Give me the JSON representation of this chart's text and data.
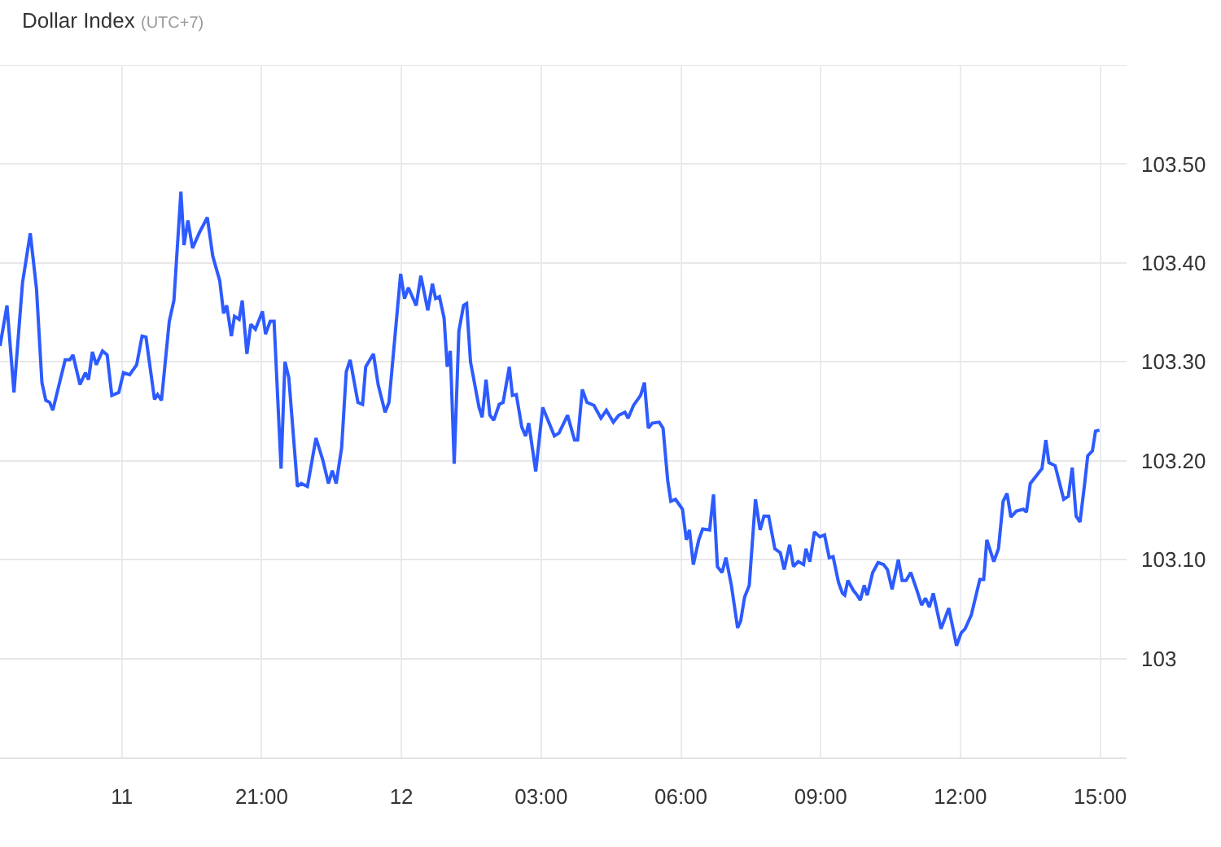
{
  "chart_data": {
    "type": "line",
    "title": "Dollar Index",
    "subtitle": "(UTC+7)",
    "x": [
      "--01-11T15:23",
      "--01-11T15:32",
      "--01-11T15:41",
      "--01-11T15:52",
      "--01-11T16:02",
      "--01-11T16:10",
      "--01-11T16:17",
      "--01-11T16:22",
      "--01-11T16:27",
      "--01-11T16:31",
      "--01-11T16:47",
      "--01-11T16:53",
      "--01-11T16:57",
      "--01-11T17:06",
      "--01-11T17:13",
      "--01-11T17:17",
      "--01-11T17:22",
      "--01-11T17:27",
      "--01-11T17:35",
      "--01-11T17:41",
      "--01-11T17:47",
      "--01-11T17:56",
      "--01-11T18:02",
      "--01-11T18:10",
      "--01-11T18:19",
      "--01-11T18:26",
      "--01-11T18:31",
      "--01-11T18:42",
      "--01-11T18:46",
      "--01-11T18:51",
      "--01-11T19:01",
      "--01-11T19:07",
      "--01-11T19:16",
      "--01-11T19:20",
      "--01-11T19:25",
      "--01-11T19:31",
      "--01-11T19:40",
      "--01-11T19:50",
      "--01-11T19:57",
      "--01-11T20:06",
      "--01-11T20:11",
      "--01-11T20:15",
      "--01-11T20:21",
      "--01-11T20:25",
      "--01-11T20:31",
      "--01-11T20:35",
      "--01-11T20:41",
      "--01-11T20:46",
      "--01-11T20:52",
      "--01-11T21:01",
      "--01-11T21:05",
      "--01-11T21:11",
      "--01-11T21:16",
      "--01-11T21:25",
      "--01-11T21:30",
      "--01-11T21:35",
      "--01-11T21:46",
      "--01-11T21:51",
      "--01-11T21:59",
      "--01-11T22:10",
      "--01-11T22:19",
      "--01-11T22:26",
      "--01-11T22:31",
      "--01-11T22:36",
      "--01-11T22:43",
      "--01-11T22:49",
      "--01-11T22:54",
      "--01-11T23:04",
      "--01-11T23:10",
      "--01-11T23:14",
      "--01-11T23:24",
      "--01-11T23:30",
      "--01-11T23:39",
      "--01-11T23:44",
      "--01-11T23:59",
      "--01-12T00:04",
      "--01-12T00:09",
      "--01-12T00:19",
      "--01-12T00:25",
      "--01-12T00:34",
      "--01-12T00:40",
      "--01-12T00:44",
      "--01-12T00:49",
      "--01-12T00:55",
      "--01-12T00:59",
      "--01-12T01:03",
      "--01-12T01:08",
      "--01-12T01:14",
      "--01-12T01:20",
      "--01-12T01:24",
      "--01-12T01:29",
      "--01-12T01:40",
      "--01-12T01:44",
      "--01-12T01:49",
      "--01-12T01:54",
      "--01-12T01:59",
      "--01-12T02:06",
      "--01-12T02:11",
      "--01-12T02:19",
      "--01-12T02:23",
      "--01-12T02:28",
      "--01-12T02:35",
      "--01-12T02:40",
      "--01-12T02:44",
      "--01-12T02:53",
      "--01-12T03:02",
      "--01-12T03:17",
      "--01-12T03:23",
      "--01-12T03:34",
      "--01-12T03:43",
      "--01-12T03:47",
      "--01-12T03:53",
      "--01-12T03:59",
      "--01-12T04:08",
      "--01-12T04:17",
      "--01-12T04:24",
      "--01-12T04:33",
      "--01-12T04:40",
      "--01-12T04:48",
      "--01-12T04:52",
      "--01-12T04:59",
      "--01-12T05:08",
      "--01-12T05:13",
      "--01-12T05:18",
      "--01-12T05:23",
      "--01-12T05:32",
      "--01-12T05:37",
      "--01-12T05:43",
      "--01-12T05:47",
      "--01-12T05:53",
      "--01-12T06:02",
      "--01-12T06:07",
      "--01-12T06:11",
      "--01-12T06:16",
      "--01-12T06:23",
      "--01-12T06:28",
      "--01-12T06:37",
      "--01-12T06:42",
      "--01-12T06:47",
      "--01-12T06:53",
      "--01-12T06:58",
      "--01-12T07:05",
      "--01-12T07:13",
      "--01-12T07:17",
      "--01-12T07:22",
      "--01-12T07:28",
      "--01-12T07:36",
      "--01-12T07:42",
      "--01-12T07:47",
      "--01-12T07:53",
      "--01-12T08:01",
      "--01-12T08:08",
      "--01-12T08:13",
      "--01-12T08:20",
      "--01-12T08:25",
      "--01-12T08:31",
      "--01-12T08:38",
      "--01-12T08:41",
      "--01-12T08:46",
      "--01-12T08:52",
      "--01-12T08:59",
      "--01-12T09:05",
      "--01-12T09:11",
      "--01-12T09:16",
      "--01-12T09:23",
      "--01-12T09:28",
      "--01-12T09:31",
      "--01-12T09:35",
      "--01-12T09:42",
      "--01-12T09:47",
      "--01-12T09:51",
      "--01-12T09:56",
      "--01-12T10:00",
      "--01-12T10:07",
      "--01-12T10:14",
      "--01-12T10:21",
      "--01-12T10:26",
      "--01-12T10:32",
      "--01-12T10:40",
      "--01-12T10:45",
      "--01-12T10:50",
      "--01-12T10:56",
      "--01-12T11:04",
      "--01-12T11:10",
      "--01-12T11:15",
      "--01-12T11:20",
      "--01-12T11:25",
      "--01-12T11:35",
      "--01-12T11:45",
      "--01-12T11:55",
      "--01-12T12:01",
      "--01-12T12:06",
      "--01-12T12:14",
      "--01-12T12:25",
      "--01-12T12:30",
      "--01-12T12:34",
      "--01-12T12:43",
      "--01-12T12:49",
      "--01-12T12:55",
      "--01-12T13:00",
      "--01-12T13:05",
      "--01-12T13:12",
      "--01-12T13:21",
      "--01-12T13:25",
      "--01-12T13:30",
      "--01-12T13:40",
      "--01-12T13:45",
      "--01-12T13:50",
      "--01-12T13:54",
      "--01-12T14:02",
      "--01-12T14:13",
      "--01-12T14:19",
      "--01-12T14:24",
      "--01-12T14:29",
      "--01-12T14:34",
      "--01-12T14:40",
      "--01-12T14:44",
      "--01-12T14:50",
      "--01-12T14:54",
      "--01-12T14:59"
    ],
    "series": [
      {
        "color": "#2d5bff",
        "values": [
          103.316,
          103.357,
          103.269,
          103.38,
          103.43,
          103.374,
          103.279,
          103.261,
          103.259,
          103.251,
          103.302,
          103.302,
          103.307,
          103.277,
          103.289,
          103.282,
          103.31,
          103.297,
          103.311,
          103.307,
          103.266,
          103.269,
          103.289,
          103.287,
          103.297,
          103.326,
          103.325,
          103.262,
          103.267,
          103.261,
          103.341,
          103.362,
          103.472,
          103.418,
          103.443,
          103.415,
          103.431,
          103.446,
          103.407,
          103.382,
          103.349,
          103.357,
          103.326,
          103.346,
          103.343,
          103.362,
          103.308,
          103.338,
          103.333,
          103.351,
          103.328,
          103.341,
          103.341,
          103.192,
          103.3,
          103.284,
          103.174,
          103.177,
          103.174,
          103.223,
          103.2,
          103.177,
          103.19,
          103.177,
          103.213,
          103.29,
          103.302,
          103.259,
          103.257,
          103.295,
          103.308,
          103.277,
          103.249,
          103.259,
          103.389,
          103.364,
          103.375,
          103.357,
          103.387,
          103.352,
          103.379,
          103.364,
          103.366,
          103.344,
          103.295,
          103.311,
          103.197,
          103.331,
          103.357,
          103.359,
          103.3,
          103.254,
          103.244,
          103.282,
          103.246,
          103.241,
          103.257,
          103.259,
          103.295,
          103.266,
          103.267,
          103.234,
          103.225,
          103.238,
          103.189,
          103.254,
          103.225,
          103.228,
          103.246,
          103.221,
          103.221,
          103.272,
          103.259,
          103.256,
          103.243,
          103.251,
          103.239,
          103.246,
          103.249,
          103.243,
          103.256,
          103.266,
          103.279,
          103.233,
          103.238,
          103.239,
          103.233,
          103.18,
          103.159,
          103.161,
          103.151,
          103.12,
          103.13,
          103.095,
          103.12,
          103.131,
          103.13,
          103.166,
          103.093,
          103.087,
          103.102,
          103.074,
          103.031,
          103.038,
          103.062,
          103.074,
          103.161,
          103.13,
          103.144,
          103.144,
          103.111,
          103.107,
          103.09,
          103.115,
          103.093,
          103.098,
          103.095,
          103.111,
          103.098,
          103.128,
          103.123,
          103.125,
          103.102,
          103.103,
          103.077,
          103.066,
          103.064,
          103.079,
          103.069,
          103.064,
          103.059,
          103.074,
          103.064,
          103.087,
          103.097,
          103.095,
          103.09,
          103.07,
          103.1,
          103.079,
          103.079,
          103.087,
          103.069,
          103.054,
          103.061,
          103.052,
          103.066,
          103.03,
          103.051,
          103.013,
          103.026,
          103.03,
          103.044,
          103.08,
          103.08,
          103.12,
          103.098,
          103.111,
          103.159,
          103.167,
          103.143,
          103.149,
          103.151,
          103.148,
          103.177,
          103.187,
          103.192,
          103.221,
          103.198,
          103.195,
          103.161,
          103.164,
          103.193,
          103.144,
          103.138,
          103.177,
          103.205,
          103.21,
          103.23,
          103.231
        ]
      }
    ],
    "xlim": [
      "--01-11T15:23",
      "--01-12T15:34"
    ],
    "xticks": [
      {
        "value": "--01-11T18:00",
        "label": "11"
      },
      {
        "value": "--01-11T21:00",
        "label": "21:00"
      },
      {
        "value": "--01-12T00:00",
        "label": "12"
      },
      {
        "value": "--01-12T03:00",
        "label": "03:00"
      },
      {
        "value": "--01-12T06:00",
        "label": "06:00"
      },
      {
        "value": "--01-12T09:00",
        "label": "09:00"
      },
      {
        "value": "--01-12T12:00",
        "label": "12:00"
      },
      {
        "value": "--01-12T15:00",
        "label": "15:00"
      }
    ],
    "ylim": [
      102.9,
      103.6
    ],
    "yticks": [
      {
        "value": 103,
        "label": "103"
      },
      {
        "value": 103.1,
        "label": "103.10"
      },
      {
        "value": 103.2,
        "label": "103.20"
      },
      {
        "value": 103.3,
        "label": "103.30"
      },
      {
        "value": 103.4,
        "label": "103.40"
      },
      {
        "value": 103.5,
        "label": "103.50"
      },
      {
        "value": 103.6,
        "label": null
      }
    ],
    "grid": true,
    "marker": "none",
    "line_style": "solid"
  }
}
